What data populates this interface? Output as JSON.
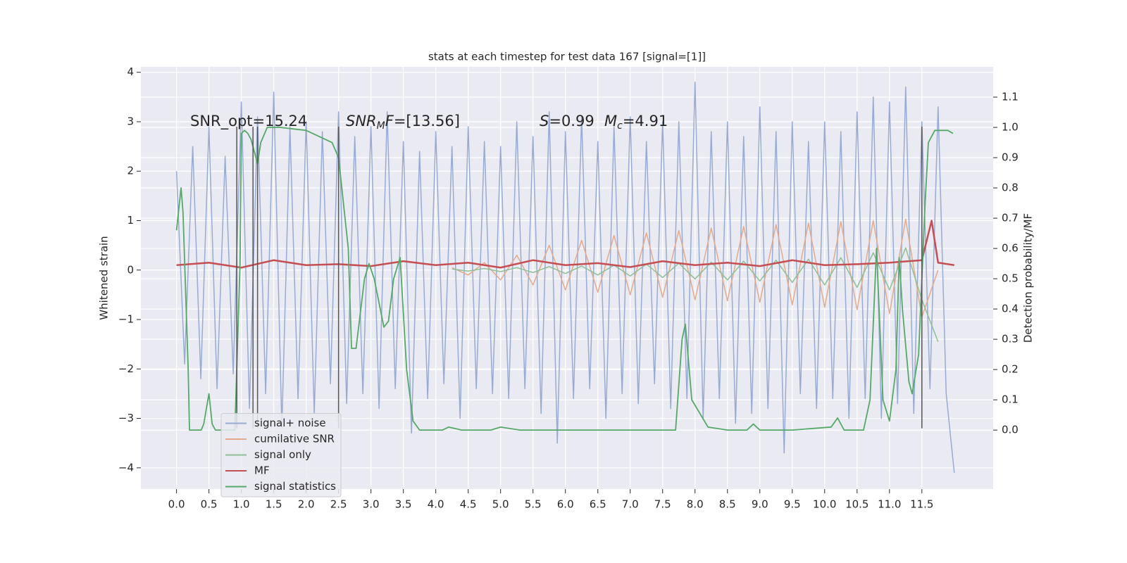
{
  "chart_data": {
    "type": "line",
    "title": "stats at each timestep for test data 167 [signal=[1]]",
    "ylabel": "Whitened strain",
    "y2label": "Detection probability/MF",
    "annotations": [
      [
        "SNR_opt=15.24"
      ],
      [
        "SNR",
        "M",
        "F",
        "=[13.56]"
      ],
      [
        "S",
        "=0.99"
      ],
      [
        "M",
        "c",
        "=4.91"
      ]
    ],
    "xlim": [
      -0.55,
      12.6
    ],
    "ylim": [
      -4.43,
      4.11
    ],
    "y2lim": [
      -0.195,
      1.2
    ],
    "xticks": [
      {
        "value": 0,
        "label": "0.0"
      },
      0.5,
      {
        "value": 1,
        "label": "1.0"
      },
      1.5,
      {
        "value": 2,
        "label": "2.0"
      },
      2.5,
      {
        "value": 3,
        "label": "3.0"
      },
      3.5,
      {
        "value": 4,
        "label": "4.0"
      },
      4.5,
      {
        "value": 5,
        "label": "5.0"
      },
      5.5,
      {
        "value": 6,
        "label": "6.0"
      },
      6.5,
      {
        "value": 7,
        "label": "7.0"
      },
      7.5,
      {
        "value": 8,
        "label": "8.0"
      },
      8.5,
      {
        "value": 9,
        "label": "9.0"
      },
      9.5,
      {
        "value": 10,
        "label": "10.0"
      },
      10.5,
      {
        "value": 11,
        "label": "11.0"
      },
      11.5
    ],
    "yticks": [
      {
        "value": -4,
        "label": "−4"
      },
      {
        "value": -3,
        "label": "−3"
      },
      {
        "value": -2,
        "label": "−2"
      },
      {
        "value": -1,
        "label": "−1"
      },
      0,
      1,
      2,
      3,
      4
    ],
    "y2ticks": [
      {
        "value": 0,
        "label": "0.0"
      },
      0.1,
      0.2,
      0.3,
      0.4,
      0.5,
      0.6,
      0.7,
      0.8,
      0.9,
      {
        "value": 1,
        "label": "1.0"
      },
      1.1
    ],
    "grid": true,
    "legend": "lower left",
    "series": [
      {
        "name": "signal+ noise",
        "color": "#97abd3",
        "width": 1.5,
        "x": [
          0,
          0.125,
          0.25,
          0.375,
          0.5,
          0.625,
          0.75,
          0.875,
          1,
          1.125,
          1.25,
          1.375,
          1.5,
          1.625,
          1.75,
          1.875,
          2,
          2.125,
          2.25,
          2.375,
          2.5,
          2.625,
          2.75,
          2.875,
          3,
          3.125,
          3.25,
          3.375,
          3.5,
          3.625,
          3.75,
          3.875,
          4,
          4.125,
          4.25,
          4.375,
          4.5,
          4.625,
          4.75,
          4.875,
          5,
          5.125,
          5.25,
          5.375,
          5.5,
          5.625,
          5.75,
          5.875,
          6,
          6.125,
          6.25,
          6.375,
          6.5,
          6.625,
          6.75,
          6.875,
          7,
          7.125,
          7.25,
          7.375,
          7.5,
          7.625,
          7.75,
          7.875,
          8,
          8.125,
          8.25,
          8.375,
          8.5,
          8.625,
          8.75,
          8.875,
          9,
          9.125,
          9.25,
          9.375,
          9.5,
          9.625,
          9.75,
          9.875,
          10,
          10.125,
          10.25,
          10.375,
          10.5,
          10.625,
          10.75,
          10.875,
          11,
          11.125,
          11.25,
          11.375,
          11.5,
          11.625,
          11.75,
          11.875,
          12
        ],
        "values": [
          2.0,
          -1.9,
          2.5,
          -2.2,
          2.9,
          -2.4,
          2.3,
          -2.1,
          3.4,
          -2.8,
          3.1,
          -2.5,
          3.6,
          -3.2,
          2.9,
          -2.6,
          3.0,
          -2.9,
          2.8,
          -2.3,
          3.2,
          -2.7,
          2.7,
          -2.5,
          2.9,
          -2.8,
          3.2,
          -2.4,
          2.6,
          -3.3,
          2.4,
          -2.6,
          2.8,
          -2.3,
          2.5,
          -3.0,
          2.9,
          -2.4,
          2.6,
          -2.5,
          2.5,
          -2.6,
          3.0,
          -2.4,
          2.7,
          -2.9,
          3.2,
          -3.5,
          2.8,
          -2.6,
          3.1,
          -2.4,
          2.6,
          -3.0,
          2.9,
          -2.5,
          3.1,
          -2.7,
          2.6,
          -2.3,
          3.0,
          -2.8,
          3.0,
          -2.6,
          3.8,
          -3.0,
          2.8,
          -2.6,
          3.0,
          -3.1,
          2.7,
          -2.9,
          3.3,
          -2.8,
          2.8,
          -3.7,
          3.0,
          -2.5,
          2.6,
          -2.8,
          3.0,
          -2.6,
          2.8,
          -3.0,
          3.2,
          -2.6,
          3.5,
          -3.0,
          3.4,
          -2.7,
          3.7,
          -2.9,
          3.0,
          -2.4,
          3.3,
          -2.5,
          -4.1
        ]
      },
      {
        "name": "cumilative SNR",
        "color": "#e3aa8c",
        "width": 1.5,
        "x": [
          4.25,
          4.5,
          4.75,
          5,
          5.25,
          5.5,
          5.75,
          6,
          6.25,
          6.5,
          6.75,
          7,
          7.25,
          7.5,
          7.75,
          8,
          8.25,
          8.5,
          8.75,
          9,
          9.25,
          9.5,
          9.75,
          10,
          10.25,
          10.5,
          10.75,
          11,
          11.25,
          11.5,
          11.75
        ],
        "values": [
          0.05,
          -0.1,
          0.15,
          -0.2,
          0.3,
          -0.3,
          0.5,
          -0.4,
          0.6,
          -0.45,
          0.7,
          -0.5,
          0.75,
          -0.55,
          0.8,
          -0.6,
          0.85,
          -0.62,
          0.88,
          -0.65,
          0.92,
          -0.7,
          0.95,
          -0.75,
          0.98,
          -0.8,
          1.0,
          -0.88,
          1.03,
          -0.95,
          0.0
        ]
      },
      {
        "name": "signal only",
        "color": "#8fbf96",
        "width": 1.5,
        "x": [
          4.25,
          4.5,
          4.75,
          5,
          5.25,
          5.5,
          5.75,
          6,
          6.25,
          6.5,
          6.75,
          7,
          7.25,
          7.5,
          7.75,
          8,
          8.25,
          8.5,
          8.75,
          9,
          9.25,
          9.5,
          9.75,
          10,
          10.25,
          10.5,
          10.75,
          11,
          11.25,
          11.5,
          11.75
        ],
        "values": [
          0.02,
          -0.02,
          0.03,
          -0.03,
          0.05,
          -0.05,
          0.07,
          -0.07,
          0.08,
          -0.1,
          0.1,
          -0.12,
          0.12,
          -0.15,
          0.14,
          -0.18,
          0.16,
          -0.2,
          0.18,
          -0.22,
          0.2,
          -0.25,
          0.22,
          -0.3,
          0.25,
          -0.35,
          0.35,
          -0.4,
          0.45,
          -0.6,
          -1.45
        ]
      },
      {
        "name": "MF",
        "color": "#c44e52",
        "width": 2.5,
        "x": [
          0,
          0.5,
          1,
          1.5,
          2,
          2.5,
          3,
          3.5,
          4,
          4.5,
          5,
          5.5,
          6,
          6.5,
          7,
          7.5,
          8,
          8.5,
          9,
          9.5,
          10,
          10.5,
          11,
          11.5,
          11.65,
          11.75,
          12
        ],
        "values": [
          0.1,
          0.15,
          0.05,
          0.2,
          0.1,
          0.12,
          0.08,
          0.18,
          0.1,
          0.15,
          0.05,
          0.2,
          0.1,
          0.14,
          0.06,
          0.18,
          0.1,
          0.15,
          0.08,
          0.2,
          0.1,
          0.12,
          0.15,
          0.2,
          1.0,
          0.15,
          0.1
        ]
      },
      {
        "name": "signal statistics",
        "color": "#55a868",
        "width": 1.8,
        "axis": "y2",
        "x": [
          0,
          0.07,
          0.1,
          0.18,
          0.2,
          0.3,
          0.38,
          0.42,
          0.5,
          0.55,
          0.6,
          0.8,
          0.9,
          0.98,
          1.0,
          1.05,
          1.1,
          1.15,
          1.25,
          1.3,
          1.4,
          1.6,
          2.0,
          2.2,
          2.4,
          2.5,
          2.65,
          2.7,
          2.77,
          2.9,
          2.97,
          3.05,
          3.2,
          3.27,
          3.35,
          3.45,
          3.55,
          3.65,
          3.75,
          4.1,
          4.2,
          4.4,
          4.85,
          5.0,
          5.3,
          5.5,
          7.5,
          7.7,
          7.8,
          7.85,
          7.95,
          8.2,
          8.5,
          8.8,
          8.9,
          9.0,
          9.5,
          10.1,
          10.2,
          10.3,
          10.5,
          10.6,
          10.7,
          10.8,
          10.9,
          11.0,
          11.1,
          11.15,
          11.2,
          11.3,
          11.35,
          11.45,
          11.55,
          11.6,
          11.7,
          11.9,
          11.98
        ],
        "values": [
          0.66,
          0.8,
          0.72,
          0.2,
          0.0,
          0.0,
          0.0,
          0.02,
          0.12,
          0.02,
          0.0,
          0.0,
          0.0,
          0.55,
          0.98,
          0.99,
          0.98,
          0.96,
          0.88,
          0.95,
          1.0,
          1.0,
          0.99,
          0.97,
          0.95,
          0.9,
          0.6,
          0.27,
          0.27,
          0.5,
          0.55,
          0.5,
          0.34,
          0.36,
          0.5,
          0.57,
          0.2,
          0.03,
          0.0,
          0.0,
          0.01,
          0.0,
          0.0,
          0.01,
          0.0,
          0.0,
          0.0,
          0.0,
          0.3,
          0.35,
          0.1,
          0.01,
          0.0,
          0.0,
          0.02,
          0.0,
          0.0,
          0.01,
          0.04,
          0.0,
          0.0,
          0.0,
          0.1,
          0.6,
          0.1,
          0.03,
          0.2,
          0.57,
          0.4,
          0.16,
          0.12,
          0.25,
          0.75,
          0.95,
          0.99,
          0.99,
          0.98
        ]
      }
    ],
    "vlines": {
      "x": [
        0.93,
        1.18,
        1.25,
        2.5,
        11.5
      ],
      "ymin": -3.2,
      "ymax": 2.9,
      "color": "#555555"
    }
  }
}
